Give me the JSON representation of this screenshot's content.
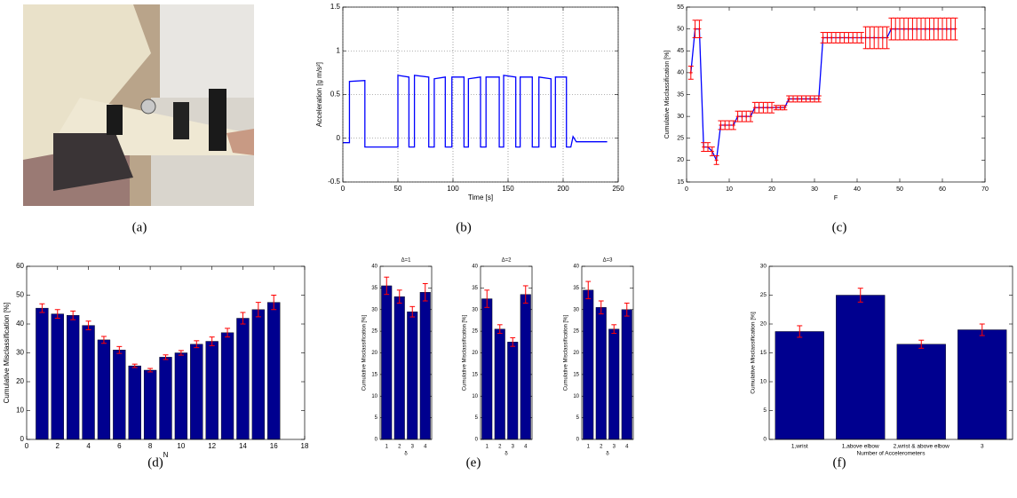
{
  "captions": [
    "(a)",
    "(b)",
    "(c)",
    "(d)",
    "(e)",
    "(f)"
  ],
  "chart_data": [
    {
      "type": "line",
      "xlabel": "Time [s]",
      "ylabel": "Acceleration [g m/s²]",
      "color": "#0000ff",
      "grid": true,
      "xlim": [
        0,
        250
      ],
      "xticks": [
        0,
        50,
        100,
        150,
        200,
        250
      ],
      "ylim": [
        -0.5,
        1.5
      ],
      "yticks": [
        -0.5,
        0,
        0.5,
        1,
        1.5
      ],
      "x": [
        0,
        6,
        6,
        20,
        20,
        50,
        50,
        60,
        60,
        65,
        65,
        78,
        78,
        83,
        83,
        93,
        93,
        99,
        99,
        110,
        110,
        114,
        114,
        125,
        125,
        130,
        130,
        142,
        142,
        146,
        146,
        157,
        157,
        161,
        161,
        172,
        172,
        178,
        178,
        189,
        189,
        193,
        193,
        203,
        203,
        207,
        209,
        212,
        240
      ],
      "values": [
        -0.05,
        -0.05,
        0.65,
        0.66,
        -0.1,
        -0.1,
        0.72,
        0.7,
        -0.1,
        -0.1,
        0.72,
        0.7,
        -0.1,
        -0.1,
        0.68,
        0.7,
        -0.1,
        -0.1,
        0.7,
        0.7,
        -0.1,
        -0.1,
        0.68,
        0.7,
        -0.1,
        -0.1,
        0.7,
        0.7,
        -0.1,
        -0.1,
        0.72,
        0.7,
        -0.1,
        -0.1,
        0.7,
        0.7,
        -0.1,
        -0.1,
        0.7,
        0.68,
        -0.1,
        -0.1,
        0.7,
        0.7,
        -0.1,
        -0.1,
        0.02,
        -0.04,
        -0.04
      ]
    },
    {
      "type": "line",
      "xlabel": "F",
      "ylabel": "Cumulative Misclassification [%]",
      "color": "#0000ff",
      "error_color": "#ff0000",
      "xlim": [
        0,
        70
      ],
      "xticks": [
        0,
        10,
        20,
        30,
        40,
        50,
        60,
        70
      ],
      "ylim": [
        15,
        55
      ],
      "yticks": [
        15,
        20,
        25,
        30,
        35,
        40,
        45,
        50,
        55
      ],
      "x": [
        1,
        2,
        3,
        4,
        5,
        6,
        7,
        8,
        9,
        10,
        11,
        12,
        13,
        14,
        15,
        16,
        17,
        18,
        19,
        20,
        21,
        22,
        23,
        24,
        25,
        26,
        27,
        28,
        29,
        30,
        31,
        32,
        33,
        34,
        35,
        36,
        37,
        38,
        39,
        40,
        41,
        42,
        43,
        44,
        45,
        46,
        47,
        48,
        49,
        50,
        51,
        52,
        53,
        54,
        55,
        56,
        57,
        58,
        59,
        60,
        61,
        62,
        63
      ],
      "values": [
        40,
        50,
        50,
        23,
        23,
        22,
        20,
        28,
        28,
        28,
        28,
        30,
        30,
        30,
        30,
        32,
        32,
        32,
        32,
        32,
        32,
        32,
        32,
        34,
        34,
        34,
        34,
        34,
        34,
        34,
        34,
        48,
        48,
        48,
        48,
        48,
        48,
        48,
        48,
        48,
        48,
        48,
        48,
        48,
        48,
        48,
        48,
        50,
        50,
        50,
        50,
        50,
        50,
        50,
        50,
        50,
        50,
        50,
        50,
        50,
        50,
        50,
        50
      ],
      "errors": [
        1.5,
        2,
        2,
        1,
        1,
        1,
        1,
        1,
        1,
        1,
        1,
        1.2,
        1.2,
        1.2,
        1.2,
        1.2,
        1.2,
        1.2,
        1.2,
        1.2,
        0.5,
        0.5,
        0.5,
        0.7,
        0.7,
        0.7,
        0.7,
        0.7,
        0.7,
        0.7,
        0.7,
        1.2,
        1.2,
        1.2,
        1.2,
        1.2,
        1.2,
        1.2,
        1.2,
        1.2,
        1.2,
        2.5,
        2.5,
        2.5,
        2.5,
        2.5,
        2.5,
        2.5,
        2.5,
        2.5,
        2.5,
        2.5,
        2.5,
        2.5,
        2.5,
        2.5,
        2.5,
        2.5,
        2.5,
        2.5,
        2.5,
        2.5,
        2.5
      ]
    },
    {
      "type": "bar",
      "xlabel": "N",
      "ylabel": "Cumulative Misclassification [%]",
      "color": "#00008f",
      "error_color": "#ff0000",
      "xlim": [
        0,
        18
      ],
      "xticks": [
        0,
        2,
        4,
        6,
        8,
        10,
        12,
        14,
        16,
        18
      ],
      "ylim": [
        0,
        60
      ],
      "yticks": [
        0,
        10,
        20,
        30,
        40,
        50,
        60
      ],
      "x": [
        1,
        2,
        3,
        4,
        5,
        6,
        7,
        8,
        9,
        10,
        11,
        12,
        13,
        14,
        15,
        16
      ],
      "values": [
        45.5,
        43.5,
        43,
        39.5,
        34.5,
        31,
        25.5,
        24,
        28.5,
        30,
        33,
        34,
        37,
        42,
        45,
        47.5
      ],
      "errors": [
        1.5,
        1.5,
        1.5,
        1.5,
        1.2,
        1.2,
        0.6,
        0.6,
        0.8,
        0.8,
        1.2,
        1.5,
        1.5,
        2,
        2.5,
        2.5
      ]
    },
    {
      "type": "bar",
      "title": "Δ=1",
      "xlabel": "δ",
      "ylabel": "Cumulative Misclassification [%]",
      "color": "#00008f",
      "error_color": "#ff0000",
      "categories": [
        "1",
        "2",
        "3",
        "4"
      ],
      "ylim": [
        0,
        40
      ],
      "yticks": [
        0,
        5,
        10,
        15,
        20,
        25,
        30,
        35,
        40
      ],
      "values": [
        35.5,
        33,
        29.5,
        34
      ],
      "errors": [
        2,
        1.5,
        1.2,
        2
      ]
    },
    {
      "type": "bar",
      "title": "Δ=2",
      "xlabel": "δ",
      "ylabel": "Cumulative Misclassification [%]",
      "color": "#00008f",
      "error_color": "#ff0000",
      "categories": [
        "1",
        "2",
        "3",
        "4"
      ],
      "ylim": [
        0,
        40
      ],
      "yticks": [
        0,
        5,
        10,
        15,
        20,
        25,
        30,
        35,
        40
      ],
      "values": [
        32.5,
        25.5,
        22.5,
        33.5
      ],
      "errors": [
        2,
        1,
        1,
        2
      ]
    },
    {
      "type": "bar",
      "title": "Δ=3",
      "xlabel": "δ",
      "ylabel": "Cumulative Misclassification [%]",
      "color": "#00008f",
      "error_color": "#ff0000",
      "categories": [
        "1",
        "2",
        "3",
        "4"
      ],
      "ylim": [
        0,
        40
      ],
      "yticks": [
        0,
        5,
        10,
        15,
        20,
        25,
        30,
        35,
        40
      ],
      "values": [
        34.5,
        30.5,
        25.5,
        30
      ],
      "errors": [
        2,
        1.5,
        1,
        1.5
      ]
    },
    {
      "type": "bar",
      "xlabel": "Number of Accelerometers",
      "ylabel": "Cumulative Misclassification [%]",
      "color": "#00008f",
      "error_color": "#ff0000",
      "categories": [
        "1,wrist",
        "1,above elbow",
        "2,wrist & above elbow",
        "3"
      ],
      "ylim": [
        0,
        30
      ],
      "yticks": [
        0,
        5,
        10,
        15,
        20,
        25,
        30
      ],
      "values": [
        18.7,
        25,
        16.5,
        19
      ],
      "errors": [
        1,
        1.2,
        0.7,
        1
      ]
    }
  ]
}
